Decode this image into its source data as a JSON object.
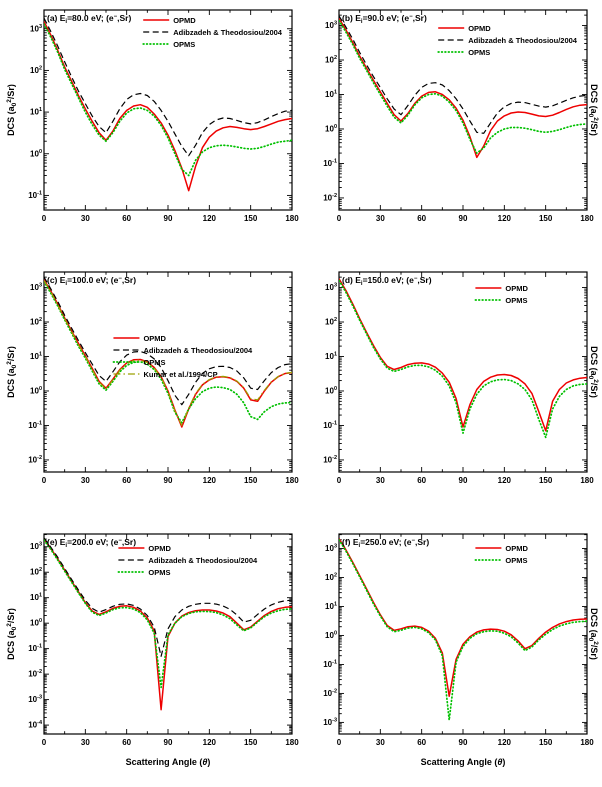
{
  "figure": {
    "background": "#ffffff",
    "frame_color": "#000000",
    "y_label_parts": [
      {
        "t": "DCS (a"
      },
      {
        "t": "0",
        "v": "sub"
      },
      {
        "t": "2",
        "v": "sup"
      },
      {
        "t": "/Sr)"
      }
    ],
    "x_label_parts": [
      {
        "t": "Scattering Angle ("
      },
      {
        "t": "θ",
        "v": "italic"
      },
      {
        "t": ")"
      }
    ],
    "x_deg": [
      0,
      5,
      10,
      15,
      20,
      25,
      30,
      35,
      40,
      45,
      50,
      55,
      60,
      65,
      70,
      75,
      80,
      85,
      90,
      95,
      100,
      105,
      110,
      115,
      120,
      125,
      130,
      135,
      140,
      145,
      150,
      155,
      160,
      165,
      170,
      175,
      180
    ],
    "colors": {
      "OPMD": "#ee0000",
      "Adibzadeh": "#000000",
      "OPMS": "#00c000",
      "Kumar": "#9aa000"
    }
  },
  "chart_data": [
    {
      "type": "line",
      "panel": "a",
      "title_parts": [
        {
          "t": "(a) E"
        },
        {
          "t": "i",
          "v": "sub"
        },
        {
          "t": "=80.0 eV; (e"
        },
        {
          "t": "−",
          "v": "sup"
        },
        {
          "t": ",Sr)"
        }
      ],
      "x_range": [
        0,
        180
      ],
      "x_ticks": [
        0,
        30,
        60,
        90,
        120,
        150,
        180
      ],
      "y_tick_exponents": [
        -1,
        0,
        1,
        2,
        3
      ],
      "ylog_range": [
        -1.35,
        3.45
      ],
      "y_title_side": "left",
      "show_x_title": false,
      "legend": {
        "x": 0.4,
        "y": 0.02
      },
      "series": [
        {
          "name": "OPMD",
          "color": "#ee0000",
          "style": "solid",
          "values": [
            1500,
            700,
            300,
            120,
            55,
            25,
            12,
            6,
            3.2,
            2.1,
            3.5,
            7,
            11,
            14,
            15,
            13,
            9,
            5.5,
            2.8,
            1.2,
            0.45,
            0.13,
            0.5,
            1.4,
            2.5,
            3.5,
            4.2,
            4.5,
            4.3,
            4.0,
            3.8,
            4.0,
            4.5,
            5.2,
            6.0,
            6.6,
            7.0
          ]
        },
        {
          "name": "Adibzadeh & Theodosiou/2004",
          "color": "#000000",
          "style": "dashed",
          "values": [
            1800,
            850,
            380,
            160,
            70,
            32,
            16,
            8,
            4.5,
            3.2,
            6,
            12,
            20,
            26,
            28,
            25,
            18,
            11,
            6,
            3,
            1.5,
            0.9,
            1.6,
            3.2,
            5.0,
            6.5,
            7.2,
            7.0,
            6.3,
            5.6,
            5.2,
            5.6,
            6.5,
            7.8,
            9.2,
            10.5,
            11
          ]
        },
        {
          "name": "OPMS",
          "color": "#00c000",
          "style": "dotted",
          "values": [
            1300,
            620,
            270,
            105,
            48,
            22,
            10,
            5,
            2.8,
            2.0,
            3.2,
            6,
            9.5,
            12,
            12.5,
            11,
            8,
            4.8,
            2.4,
            1.0,
            0.42,
            0.3,
            0.7,
            1.1,
            1.4,
            1.55,
            1.6,
            1.55,
            1.45,
            1.35,
            1.3,
            1.35,
            1.5,
            1.7,
            1.9,
            2.0,
            2.1
          ]
        }
      ]
    },
    {
      "type": "line",
      "panel": "b",
      "title_parts": [
        {
          "t": "(b) E"
        },
        {
          "t": "i",
          "v": "sub"
        },
        {
          "t": "=90.0 eV; (e"
        },
        {
          "t": "−",
          "v": "sup"
        },
        {
          "t": ",Sr)"
        }
      ],
      "x_range": [
        0,
        180
      ],
      "x_ticks": [
        0,
        30,
        60,
        90,
        120,
        150,
        180
      ],
      "y_tick_exponents": [
        -2,
        -1,
        0,
        1,
        2,
        3
      ],
      "ylog_range": [
        -2.35,
        3.45
      ],
      "y_title_side": "right",
      "show_x_title": false,
      "legend": {
        "x": 0.4,
        "y": 0.06
      },
      "series": [
        {
          "name": "OPMD",
          "color": "#ee0000",
          "style": "solid",
          "values": [
            1600,
            750,
            320,
            130,
            58,
            26,
            12,
            5.5,
            2.6,
            1.7,
            2.8,
            5.5,
            9,
            11.5,
            12,
            10,
            7,
            4,
            1.8,
            0.6,
            0.15,
            0.32,
            0.9,
            1.7,
            2.4,
            2.9,
            3.1,
            3.0,
            2.7,
            2.4,
            2.3,
            2.5,
            3.0,
            3.7,
            4.4,
            4.9,
            5.1
          ]
        },
        {
          "name": "Adibzadeh & Theodosiou/2004",
          "color": "#000000",
          "style": "dashed",
          "values": [
            1900,
            900,
            400,
            165,
            72,
            33,
            16,
            7.5,
            3.8,
            2.6,
            4.8,
            9.5,
            16,
            21,
            22,
            19,
            13,
            7.5,
            3.8,
            1.7,
            0.8,
            0.75,
            1.5,
            2.9,
            4.4,
            5.5,
            6.0,
            5.8,
            5.2,
            4.6,
            4.3,
            4.7,
            5.6,
            6.8,
            8.0,
            9.0,
            9.5
          ]
        },
        {
          "name": "OPMS",
          "color": "#00c000",
          "style": "dotted",
          "values": [
            1400,
            650,
            280,
            112,
            50,
            22,
            10,
            4.6,
            2.2,
            1.5,
            2.5,
            5,
            8,
            10,
            10.5,
            9,
            6,
            3.4,
            1.5,
            0.5,
            0.2,
            0.28,
            0.55,
            0.8,
            1.0,
            1.1,
            1.1,
            1.05,
            0.95,
            0.85,
            0.8,
            0.85,
            0.95,
            1.1,
            1.25,
            1.35,
            1.4
          ]
        }
      ]
    },
    {
      "type": "line",
      "panel": "c",
      "title_parts": [
        {
          "t": "(c) E"
        },
        {
          "t": "i",
          "v": "sub"
        },
        {
          "t": "=100.0 eV; (e"
        },
        {
          "t": "−",
          "v": "sup"
        },
        {
          "t": ",Sr)"
        }
      ],
      "x_range": [
        0,
        180
      ],
      "x_ticks": [
        0,
        30,
        60,
        90,
        120,
        150,
        180
      ],
      "y_tick_exponents": [
        -2,
        -1,
        0,
        1,
        2,
        3
      ],
      "ylog_range": [
        -2.35,
        3.45
      ],
      "y_title_side": "left",
      "show_x_title": false,
      "legend": {
        "x": 0.28,
        "y": 0.3
      },
      "series": [
        {
          "name": "OPMD",
          "color": "#ee0000",
          "style": "solid",
          "values": [
            1700,
            780,
            330,
            130,
            55,
            24,
            10.5,
            4.5,
            1.9,
            1.2,
            2.2,
            4.2,
            6.5,
            8,
            8.2,
            7,
            4.8,
            2.6,
            1.0,
            0.28,
            0.09,
            0.3,
            0.8,
            1.5,
            2.1,
            2.5,
            2.6,
            2.4,
            1.9,
            1.2,
            0.55,
            0.5,
            1.0,
            1.8,
            2.6,
            3.2,
            3.4
          ]
        },
        {
          "name": "Adibzadeh & Theodosiou/2004",
          "color": "#000000",
          "style": "dashed",
          "values": [
            2000,
            900,
            390,
            155,
            66,
            29,
            13,
            6,
            2.8,
            1.9,
            3.6,
            7,
            11,
            13.5,
            14,
            12,
            8.5,
            4.8,
            2.0,
            0.75,
            0.4,
            0.8,
            1.8,
            3.2,
            4.4,
            5.1,
            5.2,
            4.8,
            3.8,
            2.4,
            1.2,
            1.1,
            2.0,
            3.4,
            4.8,
            5.8,
            6.2
          ]
        },
        {
          "name": "OPMS",
          "color": "#00c000",
          "style": "dotted",
          "values": [
            1500,
            680,
            290,
            115,
            48,
            20,
            9,
            3.8,
            1.6,
            1.05,
            1.9,
            3.6,
            5.5,
            6.8,
            7,
            6,
            4.2,
            2.2,
            0.85,
            0.24,
            0.12,
            0.3,
            0.6,
            0.95,
            1.2,
            1.3,
            1.25,
            1.1,
            0.8,
            0.45,
            0.18,
            0.15,
            0.25,
            0.35,
            0.42,
            0.45,
            0.46
          ]
        },
        {
          "name": "Kumar et al./1994/CP",
          "color": "#9aa000",
          "style": "dashdot",
          "values": [
            1600,
            740,
            310,
            122,
            52,
            22,
            10,
            4.2,
            1.8,
            1.15,
            2.1,
            4.0,
            6.2,
            7.6,
            7.8,
            6.7,
            4.6,
            2.5,
            0.95,
            0.26,
            0.1,
            0.32,
            0.85,
            1.55,
            2.15,
            2.55,
            2.65,
            2.45,
            1.95,
            1.25,
            0.6,
            0.55,
            1.05,
            1.85,
            2.65,
            3.25,
            3.45
          ]
        }
      ]
    },
    {
      "type": "line",
      "panel": "d",
      "title_parts": [
        {
          "t": "(d) E"
        },
        {
          "t": "i",
          "v": "sub"
        },
        {
          "t": "=150.0 eV; (e"
        },
        {
          "t": "−",
          "v": "sup"
        },
        {
          "t": ",Sr)"
        }
      ],
      "x_range": [
        0,
        180
      ],
      "x_ticks": [
        0,
        30,
        60,
        90,
        120,
        150,
        180
      ],
      "y_tick_exponents": [
        -2,
        -1,
        0,
        1,
        2,
        3
      ],
      "ylog_range": [
        -2.35,
        3.45
      ],
      "y_title_side": "right",
      "show_x_title": false,
      "legend": {
        "x": 0.55,
        "y": 0.05
      },
      "series": [
        {
          "name": "OPMD",
          "color": "#ee0000",
          "style": "solid",
          "values": [
            1800,
            820,
            330,
            125,
            50,
            21,
            9.5,
            5.2,
            4.2,
            4.8,
            5.8,
            6.4,
            6.5,
            6.0,
            4.9,
            3.3,
            1.8,
            0.6,
            0.09,
            0.4,
            1.1,
            1.9,
            2.5,
            2.9,
            3.0,
            2.8,
            2.3,
            1.6,
            0.85,
            0.25,
            0.07,
            0.5,
            1.1,
            1.7,
            2.1,
            2.35,
            2.45
          ]
        },
        {
          "name": "OPMS",
          "color": "#00c000",
          "style": "dotted",
          "values": [
            1600,
            730,
            295,
            112,
            45,
            18.5,
            8.5,
            4.6,
            3.7,
            4.2,
            5.0,
            5.5,
            5.5,
            5.0,
            4.0,
            2.7,
            1.4,
            0.45,
            0.06,
            0.3,
            0.8,
            1.4,
            1.85,
            2.1,
            2.15,
            2.0,
            1.6,
            1.1,
            0.55,
            0.15,
            0.045,
            0.3,
            0.7,
            1.1,
            1.4,
            1.55,
            1.6
          ]
        }
      ]
    },
    {
      "type": "line",
      "panel": "e",
      "title_parts": [
        {
          "t": "(e) E"
        },
        {
          "t": "i",
          "v": "sub"
        },
        {
          "t": "=200.0 eV; (e"
        },
        {
          "t": "−",
          "v": "sup"
        },
        {
          "t": ",Sr)"
        }
      ],
      "x_range": [
        0,
        180
      ],
      "x_ticks": [
        0,
        30,
        60,
        90,
        120,
        150,
        180
      ],
      "y_tick_exponents": [
        -4,
        -3,
        -2,
        -1,
        0,
        1,
        2,
        3
      ],
      "ylog_range": [
        -4.35,
        3.5
      ],
      "y_title_side": "left",
      "show_x_title": true,
      "legend": {
        "x": 0.3,
        "y": 0.04
      },
      "series": [
        {
          "name": "OPMD",
          "color": "#ee0000",
          "style": "solid",
          "values": [
            2000,
            850,
            330,
            120,
            45,
            17,
            6.5,
            3.0,
            2.2,
            2.8,
            3.8,
            4.6,
            4.8,
            4.2,
            3.0,
            1.6,
            0.5,
            0.0004,
            0.3,
            1.0,
            1.9,
            2.6,
            3.1,
            3.3,
            3.3,
            3.0,
            2.5,
            1.8,
            1.0,
            0.55,
            0.7,
            1.2,
            2.0,
            2.9,
            3.7,
            4.2,
            4.4
          ]
        },
        {
          "name": "Adibzadeh & Theodosiou/2004",
          "color": "#000000",
          "style": "dashed",
          "values": [
            2200,
            950,
            380,
            140,
            52,
            20,
            8,
            3.8,
            2.7,
            3.4,
            4.6,
            5.5,
            5.7,
            5.0,
            3.6,
            2.0,
            0.7,
            0.05,
            0.6,
            1.8,
            3.3,
            4.6,
            5.5,
            6.0,
            6.0,
            5.6,
            4.7,
            3.5,
            2.1,
            1.1,
            1.3,
            2.2,
            3.6,
            5.2,
            6.6,
            7.6,
            8.0
          ]
        },
        {
          "name": "OPMS",
          "color": "#00c000",
          "style": "dotted",
          "values": [
            1800,
            780,
            300,
            110,
            41,
            15.5,
            6.0,
            2.7,
            2.0,
            2.5,
            3.4,
            4.0,
            4.1,
            3.6,
            2.6,
            1.35,
            0.4,
            0.003,
            0.35,
            1.0,
            1.8,
            2.4,
            2.8,
            2.9,
            2.85,
            2.6,
            2.1,
            1.5,
            0.85,
            0.5,
            0.65,
            1.1,
            1.8,
            2.5,
            3.1,
            3.5,
            3.6
          ]
        }
      ]
    },
    {
      "type": "line",
      "panel": "f",
      "title_parts": [
        {
          "t": "(f) E"
        },
        {
          "t": "i",
          "v": "sub"
        },
        {
          "t": "=250.0 eV; (e"
        },
        {
          "t": "−",
          "v": "sup"
        },
        {
          "t": ",Sr)"
        }
      ],
      "x_range": [
        0,
        180
      ],
      "x_ticks": [
        0,
        30,
        60,
        90,
        120,
        150,
        180
      ],
      "y_tick_exponents": [
        -3,
        -2,
        -1,
        0,
        1,
        2,
        3
      ],
      "ylog_range": [
        -3.4,
        3.5
      ],
      "y_title_side": "right",
      "show_x_title": true,
      "legend": {
        "x": 0.55,
        "y": 0.04
      },
      "series": [
        {
          "name": "OPMD",
          "color": "#ee0000",
          "style": "solid",
          "values": [
            2200,
            900,
            330,
            115,
            40,
            14,
            5.2,
            2.2,
            1.5,
            1.7,
            2.0,
            2.1,
            1.9,
            1.4,
            0.8,
            0.25,
            0.008,
            0.15,
            0.5,
            0.9,
            1.3,
            1.55,
            1.65,
            1.6,
            1.4,
            1.05,
            0.65,
            0.35,
            0.45,
            0.8,
            1.3,
            1.9,
            2.5,
            3.0,
            3.4,
            3.6,
            3.7
          ]
        },
        {
          "name": "OPMS",
          "color": "#00c000",
          "style": "dotted",
          "values": [
            2000,
            820,
            300,
            105,
            36,
            12.5,
            4.7,
            2.0,
            1.35,
            1.5,
            1.8,
            1.9,
            1.7,
            1.25,
            0.7,
            0.2,
            0.0012,
            0.12,
            0.42,
            0.8,
            1.15,
            1.35,
            1.45,
            1.4,
            1.2,
            0.9,
            0.55,
            0.3,
            0.4,
            0.7,
            1.1,
            1.6,
            2.1,
            2.5,
            2.85,
            3.0,
            3.1
          ]
        }
      ]
    }
  ]
}
